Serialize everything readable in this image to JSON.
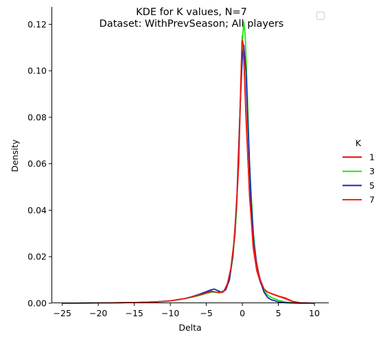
{
  "chart_data": {
    "type": "line",
    "title": "KDE for K values, N=7",
    "subtitle": "Dataset: WithPrevSeason; All players",
    "xlabel": "Delta",
    "ylabel": "Density",
    "xlim": [
      -26.5,
      12
    ],
    "ylim": [
      0,
      0.1275
    ],
    "x_ticks": [
      -25,
      -20,
      -15,
      -10,
      -5,
      0,
      5,
      10
    ],
    "x_tick_labels": [
      "−25",
      "−20",
      "−15",
      "−10",
      "−5",
      "0",
      "5",
      "10"
    ],
    "y_ticks": [
      0,
      0.02,
      0.04,
      0.06,
      0.08,
      0.1,
      0.12
    ],
    "y_tick_labels": [
      "0.00",
      "0.02",
      "0.04",
      "0.06",
      "0.08",
      "0.10",
      "0.12"
    ],
    "grid": false,
    "legend": {
      "title": "K",
      "placement": "right",
      "entries": [
        "1",
        "3",
        "5",
        "7"
      ]
    },
    "series": [
      {
        "name": "1",
        "color": "#e8170f",
        "points": [
          [
            -25,
            0
          ],
          [
            -20,
            0.0001
          ],
          [
            -15,
            0.0003
          ],
          [
            -12,
            0.0006
          ],
          [
            -10,
            0.001
          ],
          [
            -8,
            0.002
          ],
          [
            -7,
            0.0027
          ],
          [
            -6,
            0.0035
          ],
          [
            -5,
            0.0045
          ],
          [
            -4.3,
            0.0052
          ],
          [
            -3.8,
            0.0048
          ],
          [
            -3.2,
            0.0045
          ],
          [
            -2.5,
            0.0055
          ],
          [
            -2,
            0.009
          ],
          [
            -1.5,
            0.016
          ],
          [
            -1,
            0.03
          ],
          [
            -0.5,
            0.06
          ],
          [
            -0.2,
            0.095
          ],
          [
            0,
            0.115
          ],
          [
            0.2,
            0.106
          ],
          [
            0.5,
            0.08
          ],
          [
            1,
            0.047
          ],
          [
            1.5,
            0.024
          ],
          [
            2,
            0.014
          ],
          [
            2.5,
            0.009
          ],
          [
            3,
            0.0058
          ],
          [
            3.5,
            0.0048
          ],
          [
            4,
            0.0042
          ],
          [
            5,
            0.0031
          ],
          [
            6,
            0.0022
          ],
          [
            7,
            0.0008
          ],
          [
            8,
            0.0002
          ],
          [
            10,
            0
          ]
        ]
      },
      {
        "name": "3",
        "color": "#18e80f",
        "points": [
          [
            -25,
            0
          ],
          [
            -20,
            0.0001
          ],
          [
            -15,
            0.0003
          ],
          [
            -12,
            0.0006
          ],
          [
            -10,
            0.001
          ],
          [
            -8,
            0.002
          ],
          [
            -7,
            0.0026
          ],
          [
            -6,
            0.0033
          ],
          [
            -5,
            0.0042
          ],
          [
            -4.2,
            0.0048
          ],
          [
            -3.7,
            0.0047
          ],
          [
            -3,
            0.0046
          ],
          [
            -2.3,
            0.006
          ],
          [
            -1.8,
            0.01
          ],
          [
            -1.3,
            0.02
          ],
          [
            -0.8,
            0.04
          ],
          [
            -0.3,
            0.085
          ],
          [
            0,
            0.113
          ],
          [
            0.2,
            0.121
          ],
          [
            0.4,
            0.115
          ],
          [
            0.7,
            0.09
          ],
          [
            1,
            0.06
          ],
          [
            1.5,
            0.031
          ],
          [
            2,
            0.016
          ],
          [
            2.5,
            0.01
          ],
          [
            3,
            0.0055
          ],
          [
            3.5,
            0.0035
          ],
          [
            4,
            0.0025
          ],
          [
            5,
            0.0013
          ],
          [
            6,
            0.0005
          ],
          [
            7,
            0.0002
          ],
          [
            8,
            0
          ],
          [
            10,
            0
          ]
        ]
      },
      {
        "name": "5",
        "color": "#1527b5",
        "points": [
          [
            -25,
            0
          ],
          [
            -20,
            0.0001
          ],
          [
            -15,
            0.0003
          ],
          [
            -12,
            0.0006
          ],
          [
            -10,
            0.001
          ],
          [
            -8,
            0.002
          ],
          [
            -7,
            0.0028
          ],
          [
            -6,
            0.0038
          ],
          [
            -5,
            0.005
          ],
          [
            -4.3,
            0.0058
          ],
          [
            -3.9,
            0.0061
          ],
          [
            -3.4,
            0.0054
          ],
          [
            -2.8,
            0.0046
          ],
          [
            -2.3,
            0.0058
          ],
          [
            -1.8,
            0.01
          ],
          [
            -1.3,
            0.021
          ],
          [
            -0.8,
            0.042
          ],
          [
            -0.3,
            0.085
          ],
          [
            0,
            0.106
          ],
          [
            0.2,
            0.111
          ],
          [
            0.5,
            0.1
          ],
          [
            0.8,
            0.075
          ],
          [
            1.2,
            0.045
          ],
          [
            1.6,
            0.026
          ],
          [
            2,
            0.017
          ],
          [
            2.5,
            0.0095
          ],
          [
            3,
            0.0048
          ],
          [
            3.5,
            0.0025
          ],
          [
            4,
            0.0015
          ],
          [
            5,
            0.0006
          ],
          [
            6,
            0.0002
          ],
          [
            8,
            0
          ],
          [
            10,
            0
          ]
        ]
      },
      {
        "name": "7",
        "color": "#ee1b12",
        "points": [
          [
            -25,
            0
          ],
          [
            -20,
            0.0001
          ],
          [
            -15,
            0.0003
          ],
          [
            -12,
            0.0006
          ],
          [
            -10,
            0.001
          ],
          [
            -8,
            0.002
          ],
          [
            -7,
            0.0027
          ],
          [
            -6,
            0.0035
          ],
          [
            -5,
            0.0044
          ],
          [
            -4.3,
            0.005
          ],
          [
            -3.8,
            0.0049
          ],
          [
            -3.2,
            0.0046
          ],
          [
            -2.6,
            0.005
          ],
          [
            -2.1,
            0.008
          ],
          [
            -1.6,
            0.015
          ],
          [
            -1.1,
            0.028
          ],
          [
            -0.6,
            0.055
          ],
          [
            -0.3,
            0.085
          ],
          [
            -0.05,
            0.113
          ],
          [
            0.1,
            0.112
          ],
          [
            0.3,
            0.098
          ],
          [
            0.6,
            0.075
          ],
          [
            1,
            0.046
          ],
          [
            1.5,
            0.026
          ],
          [
            2,
            0.016
          ],
          [
            2.5,
            0.01
          ],
          [
            3,
            0.0062
          ],
          [
            3.5,
            0.0048
          ],
          [
            4,
            0.0041
          ],
          [
            5,
            0.003
          ],
          [
            6,
            0.0019
          ],
          [
            7,
            0.0007
          ],
          [
            8,
            0.0002
          ],
          [
            10,
            0
          ]
        ]
      }
    ]
  }
}
